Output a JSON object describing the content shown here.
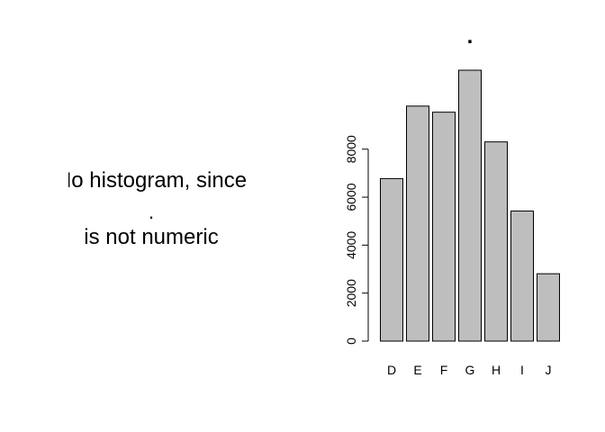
{
  "message": {
    "line1": "No histogram, since",
    "line2": ".",
    "line3": "is not numeric"
  },
  "chart_data": {
    "type": "bar",
    "title": ".",
    "xlabel": "",
    "ylabel": "",
    "categories": [
      "D",
      "E",
      "F",
      "G",
      "H",
      "I",
      "J"
    ],
    "values": [
      6775,
      9797,
      9542,
      11292,
      8304,
      5422,
      2808
    ],
    "ylim": [
      0,
      11292
    ],
    "yticks": [
      0,
      2000,
      4000,
      6000,
      8000
    ],
    "bar_color": "#bebebe",
    "grid": false,
    "legend": "none"
  }
}
